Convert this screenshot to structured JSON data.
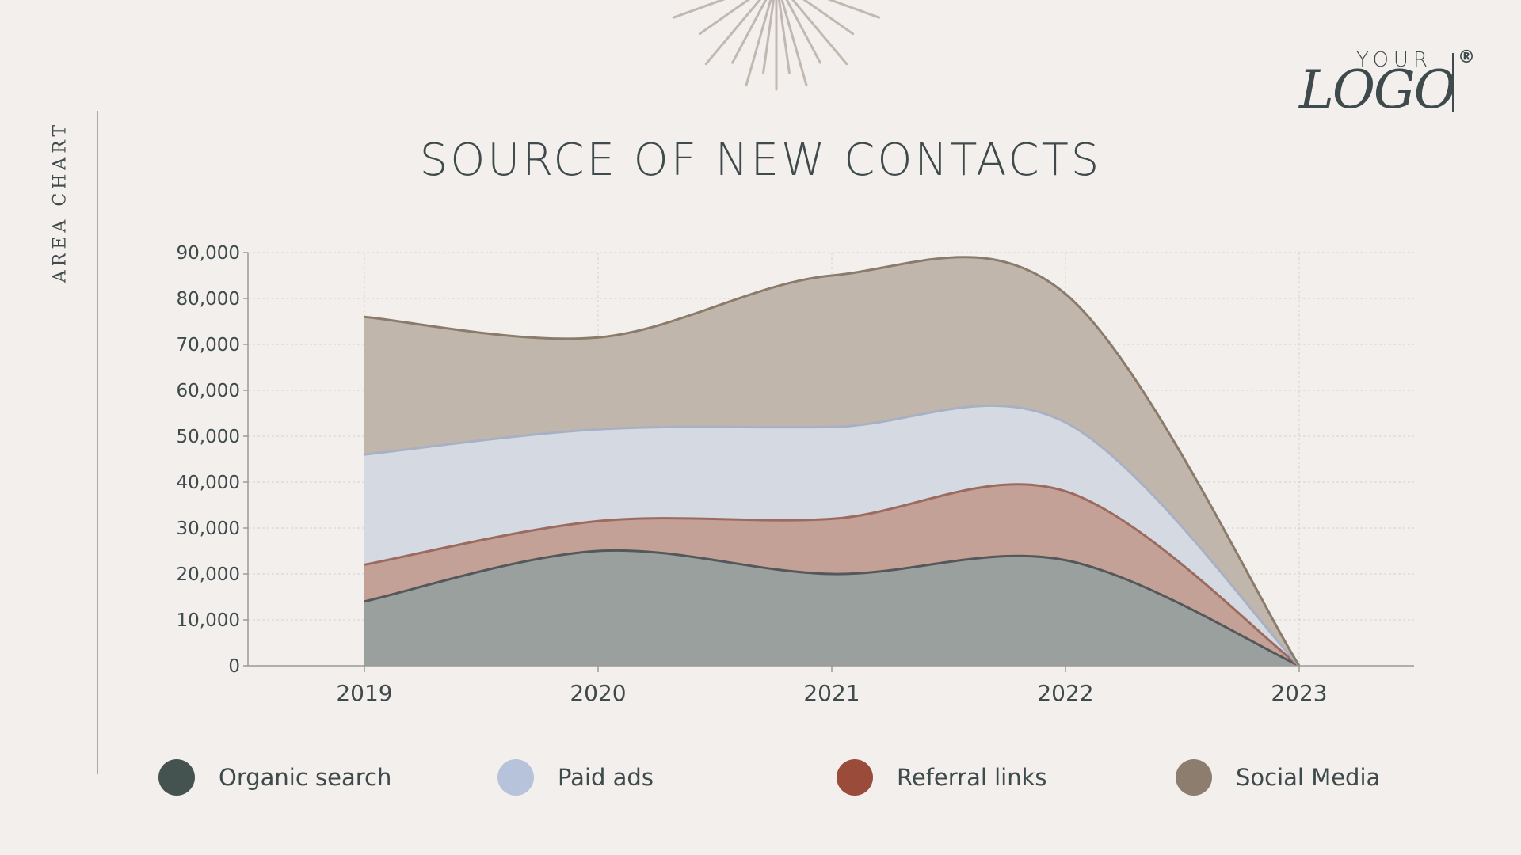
{
  "side_label": "AREA CHART",
  "logo": {
    "small_text": "YOUR",
    "big_text": "LOGO",
    "registered": "®"
  },
  "colors": {
    "background": "#f2efec",
    "text": "#3e4a4b",
    "organic": "#455350",
    "paid": "#b6c3da",
    "referral": "#9a4b3a",
    "social": "#8c7d6e"
  },
  "chart_data": {
    "type": "area",
    "stacked": true,
    "title": "SOURCE OF NEW CONTACTS",
    "xlabel": "",
    "ylabel": "",
    "x": [
      "2019",
      "2020",
      "2021",
      "2022",
      "2023"
    ],
    "ylim": [
      0,
      90000
    ],
    "yticks": [
      0,
      10000,
      20000,
      30000,
      40000,
      50000,
      60000,
      70000,
      80000,
      90000
    ],
    "ytick_labels": [
      "0",
      "10,000",
      "20,000",
      "30,000",
      "40,000",
      "50,000",
      "60,000",
      "70,000",
      "80,000",
      "90,000"
    ],
    "grid": true,
    "legend_position": "bottom",
    "series": [
      {
        "name": "Organic search",
        "values": [
          14000,
          25000,
          20000,
          23000,
          0
        ],
        "color": "#455350",
        "fill": "#9aa09d",
        "stroke": "#54585a"
      },
      {
        "name": "Referral links",
        "values": [
          8000,
          6500,
          12000,
          15000,
          0
        ],
        "color": "#9a4b3a",
        "fill": "#c4a196",
        "stroke": "#9c6a5f"
      },
      {
        "name": "Paid ads",
        "values": [
          24000,
          20000,
          20000,
          15000,
          0
        ],
        "color": "#b6c3da",
        "fill": "#d4d9e2",
        "stroke": "#a8b0c4"
      },
      {
        "name": "Social Media",
        "values": [
          30000,
          20000,
          33000,
          28000,
          0
        ],
        "color": "#8c7d6e",
        "fill": "#c1b6ac",
        "stroke": "#8b7b6a"
      }
    ]
  },
  "legend": [
    {
      "label": "Organic search",
      "color": "#455350"
    },
    {
      "label": "Paid ads",
      "color": "#b6c3da"
    },
    {
      "label": "Referral links",
      "color": "#9a4b3a"
    },
    {
      "label": "Social Media",
      "color": "#8c7d6e"
    }
  ]
}
